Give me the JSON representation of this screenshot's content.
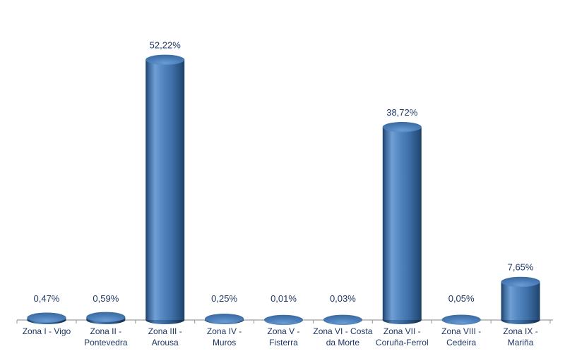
{
  "chart_data": {
    "type": "bar",
    "subtype": "cylinder-3d",
    "title": "",
    "xlabel": "",
    "ylabel": "",
    "grid": false,
    "legend": false,
    "ylim": [
      0,
      55
    ],
    "value_unit": "%",
    "decimal_separator": ",",
    "categories": [
      "Zona I - Vigo",
      "Zona II - Pontevedra",
      "Zona III - Arousa",
      "Zona IV - Muros",
      "Zona V - Fisterra",
      "Zona VI - Costa da Morte",
      "Zona VII - Coruña-Ferrol",
      "Zona VIII - Cedeira",
      "Zona IX - Mariña"
    ],
    "category_lines": [
      [
        "Zona I - Vigo"
      ],
      [
        "Zona II -",
        "Pontevedra"
      ],
      [
        "Zona III -",
        "Arousa"
      ],
      [
        "Zona IV -",
        "Muros"
      ],
      [
        "Zona V -",
        "Fisterra"
      ],
      [
        "Zona VI - Costa",
        "da Morte"
      ],
      [
        "Zona VII -",
        "Coruña-Ferrol"
      ],
      [
        "Zona VIII -",
        "Cedeira"
      ],
      [
        "Zona IX -",
        "Mariña"
      ]
    ],
    "values": [
      0.47,
      0.59,
      52.22,
      0.25,
      0.01,
      0.03,
      38.72,
      0.05,
      7.65
    ],
    "value_labels": [
      "0,47%",
      "0,59%",
      "52,22%",
      "0,25%",
      "0,01%",
      "0,03%",
      "38,72%",
      "0,05%",
      "7,65%"
    ],
    "colors": {
      "background": "#FFFFFF",
      "label_text": "#1F3864",
      "axis_line": "#9E9E9E",
      "bar_base": "#4F81BD",
      "bar_highlight": "#6F9FD4",
      "bar_dark_edge": "#1D4065",
      "bar_top_light": "#6A9BD2",
      "bar_top_dark": "#3A689C"
    }
  }
}
